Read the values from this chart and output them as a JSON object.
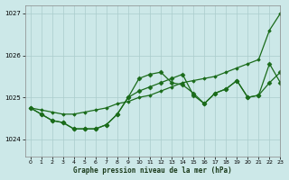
{
  "title": "Graphe pression niveau de la mer (hPa)",
  "background_color": "#cce8e8",
  "grid_color": "#aacccc",
  "line_color": "#1a6b1a",
  "xlim": [
    -0.5,
    23
  ],
  "ylim": [
    1023.6,
    1027.2
  ],
  "yticks": [
    1024,
    1025,
    1026,
    1027
  ],
  "xticks": [
    0,
    1,
    2,
    3,
    4,
    5,
    6,
    7,
    8,
    9,
    10,
    11,
    12,
    13,
    14,
    15,
    16,
    17,
    18,
    19,
    20,
    21,
    22,
    23
  ],
  "series_wavy": [
    1024.75,
    1024.6,
    1024.45,
    1024.4,
    1024.25,
    1024.25,
    1024.25,
    1024.35,
    1024.6,
    1025.0,
    1025.45,
    1025.55,
    1025.6,
    1025.35,
    1025.3,
    1025.1,
    1024.85,
    1025.1,
    1025.2,
    1025.4,
    1025.0,
    1025.05,
    1025.35,
    1025.6
  ],
  "series_smooth": [
    1024.75,
    1024.6,
    1024.45,
    1024.4,
    1024.25,
    1024.25,
    1024.25,
    1024.35,
    1024.6,
    1025.0,
    1025.15,
    1025.25,
    1025.35,
    1025.45,
    1025.55,
    1025.05,
    1024.85,
    1025.1,
    1025.2,
    1025.4,
    1025.0,
    1025.05,
    1025.8,
    1025.35
  ],
  "series_straight": [
    1024.75,
    1024.7,
    1024.65,
    1024.6,
    1024.6,
    1024.65,
    1024.7,
    1024.75,
    1024.85,
    1024.9,
    1025.0,
    1025.05,
    1025.15,
    1025.25,
    1025.35,
    1025.4,
    1025.45,
    1025.5,
    1025.6,
    1025.7,
    1025.8,
    1025.9,
    1026.6,
    1027.0
  ]
}
